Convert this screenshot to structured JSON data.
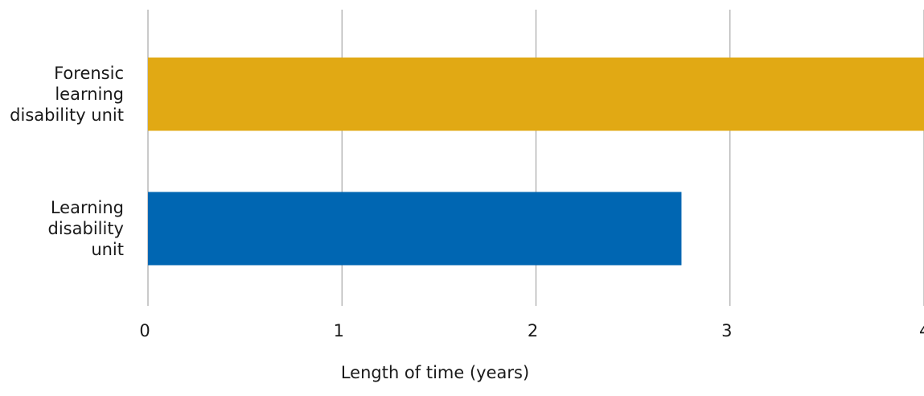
{
  "chart_data": {
    "type": "bar",
    "orientation": "horizontal",
    "categories": [
      [
        "Forensic",
        "learning",
        "disability unit"
      ],
      [
        "Learning",
        "disability",
        "unit"
      ]
    ],
    "values": [
      4.0,
      2.75
    ],
    "bar_colors": [
      "#E1A914",
      "#0066B2"
    ],
    "xlabel": "Length of time (years)",
    "xlim": [
      0,
      4
    ],
    "xticks": [
      "0",
      "1",
      "2",
      "3",
      "4"
    ],
    "grid": "vertical",
    "legend": "none"
  }
}
